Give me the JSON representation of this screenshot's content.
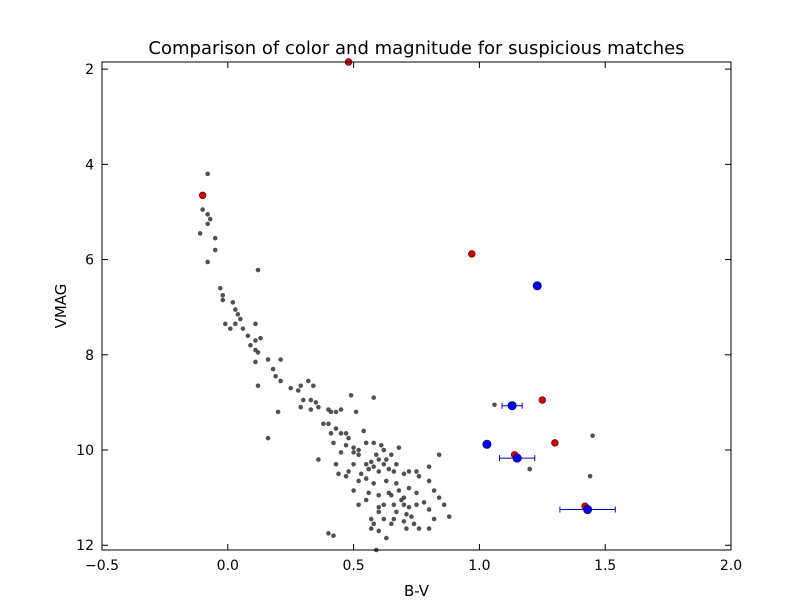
{
  "chart_data": {
    "type": "scatter",
    "title": "Comparison of color and magnitude for suspicious matches",
    "xlabel": "B-V",
    "ylabel": "VMAG",
    "xlim": [
      -0.5,
      2.0
    ],
    "ylim": [
      12.1,
      1.85
    ],
    "y_inverted": true,
    "grid": false,
    "x_ticks": [
      -0.5,
      0.0,
      0.5,
      1.0,
      1.5,
      2.0
    ],
    "x_tick_labels": [
      "−0.5",
      "0.0",
      "0.5",
      "1.0",
      "1.5",
      "2.0"
    ],
    "y_ticks": [
      2,
      4,
      6,
      8,
      10,
      12
    ],
    "y_tick_labels": [
      "2",
      "4",
      "6",
      "8",
      "10",
      "12"
    ],
    "colors": {
      "background_stars": "#333333",
      "suspicious_red": "#cc0000",
      "suspicious_blue": "#0000ee",
      "error_bar": "#0000cc"
    },
    "series": [
      {
        "marker": "small-dot",
        "color": "#333333",
        "points": [
          [
            -0.08,
            4.2
          ],
          [
            -0.1,
            4.95
          ],
          [
            -0.08,
            5.05
          ],
          [
            -0.07,
            5.15
          ],
          [
            -0.08,
            5.25
          ],
          [
            -0.11,
            5.45
          ],
          [
            -0.05,
            5.55
          ],
          [
            -0.05,
            5.8
          ],
          [
            -0.08,
            6.05
          ],
          [
            0.12,
            6.22
          ],
          [
            -0.03,
            6.6
          ],
          [
            -0.02,
            6.75
          ],
          [
            -0.02,
            6.85
          ],
          [
            0.02,
            6.9
          ],
          [
            0.03,
            7.05
          ],
          [
            0.04,
            7.15
          ],
          [
            0.05,
            7.25
          ],
          [
            0.03,
            7.35
          ],
          [
            -0.01,
            7.35
          ],
          [
            0.01,
            7.45
          ],
          [
            0.06,
            7.45
          ],
          [
            0.11,
            7.35
          ],
          [
            0.08,
            7.6
          ],
          [
            0.11,
            7.7
          ],
          [
            0.13,
            7.65
          ],
          [
            0.09,
            7.8
          ],
          [
            0.11,
            7.9
          ],
          [
            0.12,
            7.95
          ],
          [
            0.16,
            8.1
          ],
          [
            0.21,
            8.1
          ],
          [
            0.11,
            8.15
          ],
          [
            0.18,
            8.3
          ],
          [
            0.19,
            8.45
          ],
          [
            0.21,
            8.55
          ],
          [
            0.12,
            8.65
          ],
          [
            0.25,
            8.7
          ],
          [
            0.28,
            8.75
          ],
          [
            0.29,
            8.65
          ],
          [
            0.32,
            8.55
          ],
          [
            0.34,
            8.65
          ],
          [
            0.3,
            8.95
          ],
          [
            0.33,
            8.95
          ],
          [
            0.35,
            9.0
          ],
          [
            0.33,
            9.15
          ],
          [
            0.29,
            9.1
          ],
          [
            0.36,
            9.1
          ],
          [
            0.2,
            9.2
          ],
          [
            0.4,
            9.15
          ],
          [
            0.41,
            9.2
          ],
          [
            0.43,
            9.2
          ],
          [
            0.45,
            9.15
          ],
          [
            0.49,
            8.85
          ],
          [
            0.58,
            8.9
          ],
          [
            0.51,
            9.2
          ],
          [
            0.4,
            9.45
          ],
          [
            0.43,
            9.55
          ],
          [
            0.45,
            9.65
          ],
          [
            0.47,
            9.65
          ],
          [
            0.48,
            9.75
          ],
          [
            0.42,
            9.85
          ],
          [
            0.47,
            9.9
          ],
          [
            0.5,
            9.95
          ],
          [
            0.52,
            10.0
          ],
          [
            0.5,
            10.05
          ],
          [
            0.52,
            10.1
          ],
          [
            0.55,
            9.85
          ],
          [
            0.58,
            9.85
          ],
          [
            0.61,
            9.9
          ],
          [
            0.62,
            10.0
          ],
          [
            0.59,
            10.1
          ],
          [
            0.6,
            10.2
          ],
          [
            0.57,
            10.25
          ],
          [
            0.55,
            10.3
          ],
          [
            0.56,
            10.4
          ],
          [
            0.58,
            10.35
          ],
          [
            0.6,
            10.45
          ],
          [
            0.62,
            10.3
          ],
          [
            0.64,
            10.4
          ],
          [
            0.66,
            10.45
          ],
          [
            0.68,
            9.95
          ],
          [
            0.67,
            10.3
          ],
          [
            0.7,
            10.5
          ],
          [
            0.72,
            10.45
          ],
          [
            0.75,
            10.45
          ],
          [
            0.76,
            10.55
          ],
          [
            0.8,
            10.35
          ],
          [
            0.84,
            10.1
          ],
          [
            0.65,
            10.1
          ],
          [
            0.63,
            10.2
          ],
          [
            0.16,
            9.75
          ],
          [
            0.36,
            10.2
          ],
          [
            0.43,
            10.3
          ],
          [
            0.5,
            10.3
          ],
          [
            0.48,
            10.45
          ],
          [
            0.44,
            10.5
          ],
          [
            0.47,
            10.55
          ],
          [
            0.52,
            10.65
          ],
          [
            0.5,
            10.85
          ],
          [
            0.56,
            10.9
          ],
          [
            0.6,
            10.95
          ],
          [
            0.64,
            10.9
          ],
          [
            0.65,
            10.95
          ],
          [
            0.68,
            10.85
          ],
          [
            0.7,
            11.0
          ],
          [
            0.69,
            11.05
          ],
          [
            0.62,
            11.15
          ],
          [
            0.66,
            11.15
          ],
          [
            0.7,
            11.15
          ],
          [
            0.72,
            11.2
          ],
          [
            0.75,
            11.15
          ],
          [
            0.6,
            11.3
          ],
          [
            0.67,
            11.3
          ],
          [
            0.71,
            11.35
          ],
          [
            0.73,
            11.4
          ],
          [
            0.57,
            11.45
          ],
          [
            0.62,
            11.45
          ],
          [
            0.66,
            11.45
          ],
          [
            0.58,
            11.55
          ],
          [
            0.65,
            11.55
          ],
          [
            0.7,
            11.5
          ],
          [
            0.74,
            11.55
          ],
          [
            0.71,
            11.65
          ],
          [
            0.76,
            11.65
          ],
          [
            0.8,
            10.65
          ],
          [
            0.82,
            10.85
          ],
          [
            0.84,
            11.0
          ],
          [
            0.86,
            11.15
          ],
          [
            0.8,
            11.25
          ],
          [
            0.82,
            11.45
          ],
          [
            0.88,
            11.4
          ],
          [
            0.8,
            11.65
          ],
          [
            0.57,
            11.65
          ],
          [
            0.6,
            11.7
          ],
          [
            0.4,
            11.75
          ],
          [
            0.42,
            11.8
          ],
          [
            0.63,
            11.85
          ],
          [
            0.59,
            12.1
          ],
          [
            1.06,
            9.05
          ],
          [
            1.2,
            10.4
          ],
          [
            1.45,
            9.7
          ],
          [
            1.44,
            10.55
          ],
          [
            0.38,
            9.45
          ],
          [
            0.41,
            9.65
          ],
          [
            0.54,
            9.6
          ],
          [
            0.45,
            10.05
          ],
          [
            0.53,
            10.5
          ],
          [
            0.55,
            10.6
          ],
          [
            0.58,
            10.7
          ],
          [
            0.63,
            10.65
          ],
          [
            0.67,
            10.7
          ],
          [
            0.72,
            10.8
          ],
          [
            0.75,
            10.9
          ],
          [
            0.78,
            11.1
          ],
          [
            0.55,
            11.05
          ],
          [
            0.52,
            11.15
          ],
          [
            0.6,
            11.2
          ]
        ]
      },
      {
        "marker": "red-circle",
        "color": "#cc0000",
        "points": [
          [
            -0.1,
            4.65
          ],
          [
            0.48,
            1.85
          ],
          [
            0.97,
            5.88
          ],
          [
            1.25,
            8.95
          ],
          [
            1.3,
            9.85
          ],
          [
            1.14,
            10.1
          ],
          [
            1.42,
            11.18
          ]
        ]
      },
      {
        "marker": "blue-circle-errorbar",
        "color": "#0000ee",
        "points": [
          {
            "x": 1.23,
            "y": 6.55,
            "xerr": 0
          },
          {
            "x": 1.13,
            "y": 9.07,
            "xerr": 0.04
          },
          {
            "x": 1.03,
            "y": 9.88,
            "xerr": 0
          },
          {
            "x": 1.15,
            "y": 10.17,
            "xerr": 0.07
          },
          {
            "x": 1.43,
            "y": 11.25,
            "xerr": 0.11
          }
        ]
      }
    ]
  }
}
